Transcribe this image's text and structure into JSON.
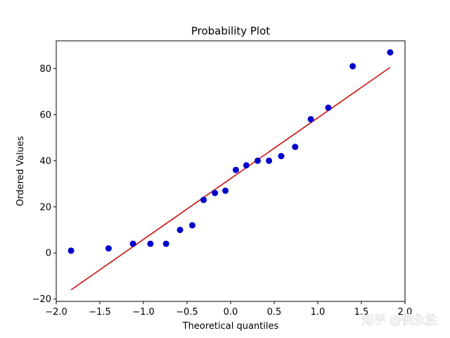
{
  "chart_data": {
    "type": "scatter",
    "title": "Probability Plot",
    "xlabel": "Theoretical quantiles",
    "ylabel": "Ordered Values",
    "xlim": [
      -2.0,
      2.0
    ],
    "ylim": [
      -21,
      92
    ],
    "grid": false,
    "xticks": [
      -2.0,
      -1.5,
      -1.0,
      -0.5,
      0.0,
      0.5,
      1.0,
      1.5,
      2.0
    ],
    "xtick_labels": [
      "−2.0",
      "−1.5",
      "−1.0",
      "−0.5",
      "0.0",
      "0.5",
      "1.0",
      "1.5",
      "2.0"
    ],
    "yticks": [
      -20,
      0,
      20,
      40,
      60,
      80
    ],
    "ytick_labels": [
      "−20",
      "0",
      "20",
      "40",
      "60",
      "80"
    ],
    "series": [
      {
        "type": "scatter",
        "color": "#0000cc",
        "x": [
          -1.83,
          -1.4,
          -1.12,
          -0.92,
          -0.74,
          -0.58,
          -0.44,
          -0.31,
          -0.18,
          -0.06,
          0.06,
          0.18,
          0.31,
          0.44,
          0.58,
          0.74,
          0.92,
          1.12,
          1.4,
          1.83
        ],
        "y": [
          1,
          2,
          4,
          4,
          4,
          10,
          12,
          23,
          26,
          27,
          36,
          38,
          40,
          40,
          42,
          46,
          58,
          63,
          81,
          87
        ]
      },
      {
        "type": "line",
        "color": "#cc1111",
        "x": [
          -1.83,
          1.83
        ],
        "y": [
          -16,
          80.5
        ]
      }
    ]
  },
  "watermark": {
    "text": "知乎 @侯永胜"
  }
}
